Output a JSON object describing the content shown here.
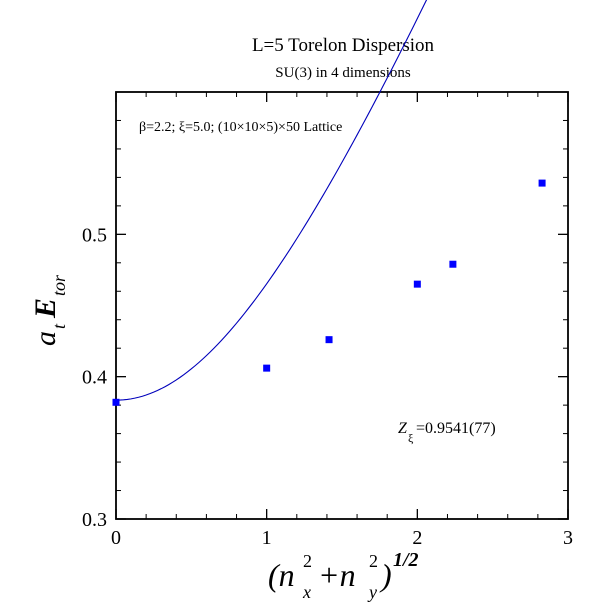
{
  "chart_data": {
    "type": "scatter",
    "title": "L=5 Torelon Dispersion",
    "subtitle": "SU(3) in 4 dimensions",
    "annotation_lattice": "β=2.2;  ξ=5.0; (10×10×5)×50 Lattice",
    "annotation_z": {
      "symbol": "Z",
      "subscript": "ξ",
      "value": "=0.9541(77)"
    },
    "xlabel": {
      "base": "(n",
      "x_sub": "x",
      "plus": "+n",
      "y_sub": "y",
      "close": ")",
      "sq": "2",
      "power": "1/2"
    },
    "ylabel": {
      "a": "a",
      "t_sub": "t",
      "E": "E",
      "tor_sub": "tor"
    },
    "xlim": [
      0,
      3
    ],
    "ylim": [
      0.3,
      0.6
    ],
    "x_ticks": [
      {
        "value": 0,
        "label": "0"
      },
      {
        "value": 1,
        "label": "1"
      },
      {
        "value": 2,
        "label": "2"
      },
      {
        "value": 3,
        "label": "3"
      }
    ],
    "y_ticks": [
      {
        "value": 0.3,
        "label": "0.3"
      },
      {
        "value": 0.4,
        "label": "0.4"
      },
      {
        "value": 0.5,
        "label": "0.5"
      }
    ],
    "series": [
      {
        "marker_color": "#0000ff",
        "points": [
          {
            "x": 0.0,
            "y": 0.382
          },
          {
            "x": 1.0,
            "y": 0.406
          },
          {
            "x": 1.414,
            "y": 0.426
          },
          {
            "x": 2.0,
            "y": 0.465
          },
          {
            "x": 2.236,
            "y": 0.479
          },
          {
            "x": 2.828,
            "y": 0.536
          }
        ]
      }
    ],
    "fit_curve": {
      "color": "#0000bb",
      "form": "sqrt(E0^2 + (2*pi*n/(L*xi))^2 / Z^2)",
      "E0": 0.3835,
      "Z": 0.9541,
      "L": 5,
      "xi": 5.0,
      "x_range": [
        0,
        3
      ]
    },
    "grid": false
  }
}
